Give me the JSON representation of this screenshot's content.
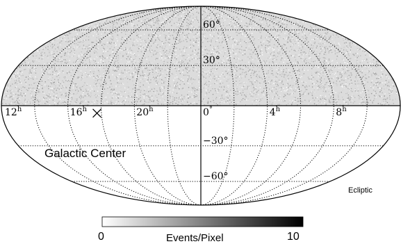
{
  "map": {
    "projection": "mollweide",
    "coordinate_frame_label": "Ecliptic",
    "filled_hemisphere": "north",
    "noise_color_range": [
      "#9a9a9a",
      "#ffffff"
    ],
    "ra_labels": [
      {
        "hour": "12",
        "sup": "h",
        "lon_deg": -180
      },
      {
        "hour": "16",
        "sup": "h",
        "lon_deg": -120
      },
      {
        "hour": "20",
        "sup": "h",
        "lon_deg": -60
      },
      {
        "hour": "0",
        "sup": "°",
        "lon_deg": 0
      },
      {
        "hour": "4",
        "sup": "h",
        "lon_deg": 60
      },
      {
        "hour": "8",
        "sup": "h",
        "lon_deg": 120
      }
    ],
    "dec_labels": [
      {
        "text": "60°",
        "lat_deg": 60
      },
      {
        "text": "30°",
        "lat_deg": 30
      },
      {
        "text": "−30°",
        "lat_deg": -30
      },
      {
        "text": "−60°",
        "lat_deg": -60
      }
    ],
    "meridians_deg": [
      -150,
      -120,
      -90,
      -60,
      -30,
      30,
      60,
      90,
      120,
      150
    ],
    "parallels_deg": [
      -60,
      -30,
      30,
      60
    ],
    "marker": {
      "label": "Galactic Center",
      "lon_deg": -94,
      "lat_deg": -5.5,
      "symbol": "x-icon"
    }
  },
  "colorbar": {
    "min_label": "0",
    "max_label": "10",
    "title": "Events/Pixel",
    "color_from": "#ffffff",
    "color_to": "#000000"
  }
}
